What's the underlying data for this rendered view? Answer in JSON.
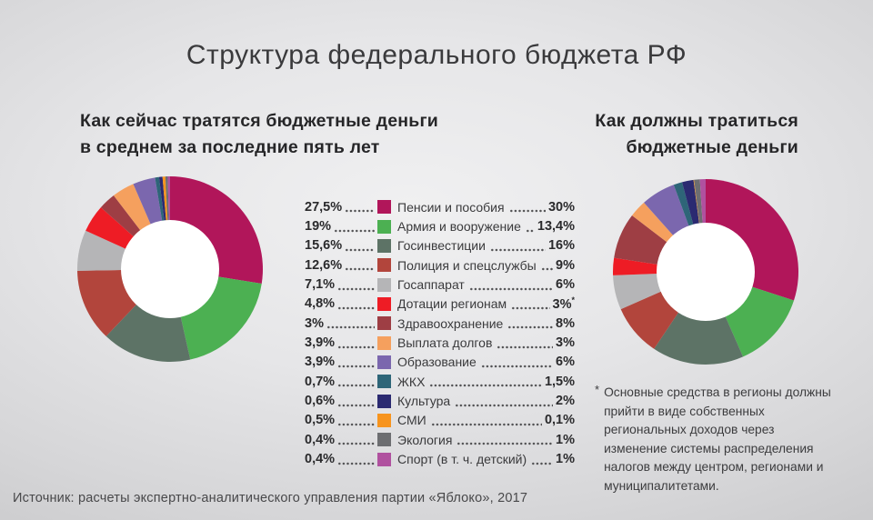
{
  "title": "Структура федерального бюджета РФ",
  "left_chart": {
    "heading_line1": "Как сейчас тратятся бюджетные деньги",
    "heading_line2": "в среднем за последние пять лет"
  },
  "right_chart": {
    "heading_line1": "Как должны тратиться",
    "heading_line2": "бюджетные деньги"
  },
  "chart_data": [
    {
      "type": "pie",
      "variant": "donut",
      "title": "Как сейчас тратятся бюджетные деньги в среднем за последние пять лет",
      "categories": [
        "Пенсии и пособия",
        "Армия и вооружение",
        "Госинвестиции",
        "Полиция и спецслужбы",
        "Госаппарат",
        "Дотации регионам",
        "Здравоохранение",
        "Выплата долгов",
        "Образование",
        "ЖКХ",
        "Культура",
        "СМИ",
        "Экология",
        "Спорт (в т. ч. детский)"
      ],
      "values": [
        27.5,
        19,
        15.6,
        12.6,
        7.1,
        4.8,
        3,
        3.9,
        3.9,
        0.7,
        0.6,
        0.5,
        0.4,
        0.4
      ],
      "display_values": [
        "27,5%",
        "19%",
        "15,6%",
        "12,6%",
        "7,1%",
        "4,8%",
        "3%",
        "3,9%",
        "3,9%",
        "0,7%",
        "0,6%",
        "0,5%",
        "0,4%",
        "0,4%"
      ],
      "colors": [
        "#b1165a",
        "#4cb052",
        "#5d7366",
        "#b2453c",
        "#b5b5b7",
        "#ee1c25",
        "#9e3e44",
        "#f5a05e",
        "#7b67ae",
        "#2e6578",
        "#2b2a71",
        "#f7941e",
        "#6d6e71",
        "#b0519f"
      ],
      "start_angle_deg": -90,
      "direction": "clockwise",
      "legend_position": "center"
    },
    {
      "type": "pie",
      "variant": "donut",
      "title": "Как должны тратиться бюджетные деньги",
      "categories": [
        "Пенсии и пособия",
        "Армия и вооружение",
        "Госинвестиции",
        "Полиция и спецслужбы",
        "Госаппарат",
        "Дотации регионам",
        "Здравоохранение",
        "Выплата долгов",
        "Образование",
        "ЖКХ",
        "Культура",
        "СМИ",
        "Экология",
        "Спорт (в т. ч. детский)"
      ],
      "values": [
        30,
        13.4,
        16,
        9,
        6,
        3,
        8,
        3,
        6,
        1.5,
        2,
        0.1,
        1,
        1
      ],
      "display_values": [
        "30%",
        "13,4%",
        "16%",
        "9%",
        "6%",
        "3%*",
        "8%",
        "3%",
        "6%",
        "1,5%",
        "2%",
        "0,1%",
        "1%",
        "1%"
      ],
      "colors": [
        "#b1165a",
        "#4cb052",
        "#5d7366",
        "#b2453c",
        "#b5b5b7",
        "#ee1c25",
        "#9e3e44",
        "#f5a05e",
        "#7b67ae",
        "#2e6578",
        "#2b2a71",
        "#f7941e",
        "#6d6e71",
        "#b0519f"
      ],
      "start_angle_deg": -90,
      "direction": "clockwise",
      "legend_position": "center"
    }
  ],
  "footnote": {
    "marker": "*",
    "text": "Основные средства в регионы должны прийти в виде собственных региональных доходов через изменение системы распределения налогов между центром, регионами и муниципалитетами."
  },
  "source": "Источник: расчеты экспертно-аналитического управления партии «Яблоко», 2017"
}
